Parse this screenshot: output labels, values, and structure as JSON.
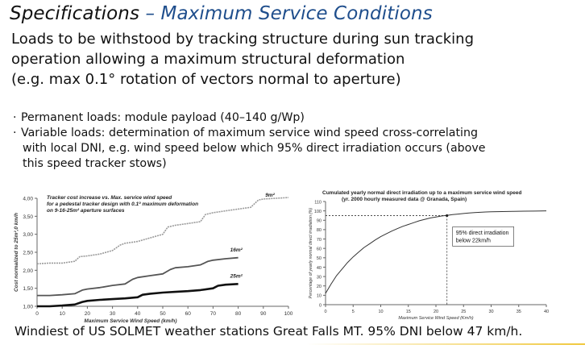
{
  "slide": {
    "title_part1": "Specifications",
    "title_sep": " – ",
    "title_part2": "Maximum Service Conditions",
    "subtitle_lines": [
      "Loads to be withstood by tracking structure during sun tracking",
      "operation allowing a maximum structural deformation",
      "(e.g. max 0.1° rotation of vectors normal to aperture)"
    ],
    "bullets": [
      {
        "text": "Permanent loads: module payload (40–140 g/Wp)"
      },
      {
        "text": "Variable loads: determination of maximum service wind speed cross-correlating",
        "cont": [
          "with local DNI, e.g. wind speed below which 95% direct irradiation occurs (above",
          "this speed tracker stows)"
        ]
      }
    ],
    "footer": "Windiest of US SOLMET weather stations Great Falls MT. 95% DNI below 47 km/h."
  },
  "chart_data": [
    {
      "type": "line",
      "title": "Tracker cost increase vs. Max. service wind speed",
      "subtitle": "for a pedestal tracker design with 0.1º maximum deformation on 9-16-25m² aperture surfaces",
      "xlabel": "Maximum Service Wind Speed (km/h)",
      "ylabel": "Cost normalized to 25m²,0 km/h",
      "xlim": [
        0,
        100
      ],
      "ylim": [
        1.0,
        4.0
      ],
      "xticks": [
        "0",
        "10",
        "20",
        "30",
        "40",
        "50",
        "60",
        "70",
        "80",
        "90",
        "100"
      ],
      "yticks": [
        "1,00",
        "1,50",
        "2,00",
        "2,50",
        "3,00",
        "3,50",
        "4,00"
      ],
      "grid": false,
      "series": [
        {
          "name": "9m²",
          "color": "#9a9a9a",
          "x": [
            0,
            5,
            10,
            15,
            17,
            20,
            25,
            30,
            33,
            35,
            40,
            45,
            50,
            52,
            55,
            60,
            65,
            67,
            70,
            75,
            80,
            85,
            88,
            90,
            95,
            100
          ],
          "y": [
            2.18,
            2.2,
            2.2,
            2.25,
            2.38,
            2.4,
            2.45,
            2.55,
            2.7,
            2.75,
            2.8,
            2.9,
            3.0,
            3.2,
            3.25,
            3.3,
            3.35,
            3.55,
            3.6,
            3.65,
            3.7,
            3.75,
            3.95,
            3.98,
            4.0,
            4.02
          ]
        },
        {
          "name": "16m²",
          "color": "#555555",
          "x": [
            0,
            5,
            10,
            15,
            18,
            20,
            25,
            30,
            35,
            38,
            40,
            45,
            50,
            53,
            55,
            60,
            65,
            68,
            70,
            75,
            80
          ],
          "y": [
            1.3,
            1.3,
            1.32,
            1.35,
            1.45,
            1.48,
            1.52,
            1.58,
            1.62,
            1.75,
            1.8,
            1.85,
            1.9,
            2.02,
            2.07,
            2.1,
            2.15,
            2.25,
            2.28,
            2.32,
            2.35
          ]
        },
        {
          "name": "25m²",
          "color": "#111111",
          "x": [
            0,
            5,
            10,
            15,
            18,
            20,
            25,
            30,
            35,
            40,
            42,
            45,
            50,
            55,
            60,
            65,
            70,
            72,
            75,
            80
          ],
          "y": [
            1.0,
            1.0,
            1.02,
            1.05,
            1.12,
            1.15,
            1.18,
            1.2,
            1.22,
            1.25,
            1.32,
            1.35,
            1.38,
            1.4,
            1.42,
            1.45,
            1.5,
            1.57,
            1.6,
            1.62
          ]
        }
      ]
    },
    {
      "type": "line",
      "title": "Cumulated yearly normal direct irradiation up to a maximum service wind speed",
      "subtitle": "(yr. 2000 hourly measured data @ Granada, Spain)",
      "xlabel": "Maximum Service Wind Speed (Km/h)",
      "ylabel": "Percentage of yearly normal direct irradiation (%)",
      "xlim": [
        0,
        40
      ],
      "ylim": [
        0,
        110
      ],
      "xticks": [
        "0",
        "5",
        "10",
        "15",
        "20",
        "25",
        "30",
        "35",
        "40"
      ],
      "yticks": [
        "0",
        "10",
        "20",
        "30",
        "40",
        "50",
        "60",
        "70",
        "80",
        "90",
        "100",
        "110"
      ],
      "grid": false,
      "annotation": {
        "text_lines": [
          "95% direct irradiation",
          "below 22km/h"
        ],
        "x": 22,
        "y": 95
      },
      "series": [
        {
          "color": "#333333",
          "x": [
            0,
            1,
            2,
            3,
            4,
            5,
            6,
            7,
            8,
            9,
            10,
            11,
            12,
            13,
            14,
            15,
            16,
            17,
            18,
            19,
            20,
            21,
            22,
            23,
            24,
            25,
            26,
            27,
            28,
            29,
            30,
            32,
            34,
            36,
            38,
            40
          ],
          "y": [
            12,
            22,
            31,
            38,
            45,
            51,
            56,
            61,
            65,
            69,
            72.5,
            75.5,
            78.5,
            81,
            83.5,
            85.5,
            87.5,
            89.5,
            91,
            92.5,
            93.5,
            94.5,
            95.2,
            96,
            96.6,
            97.2,
            97.7,
            98.1,
            98.5,
            98.8,
            99,
            99.3,
            99.5,
            99.7,
            99.8,
            100
          ]
        }
      ]
    }
  ]
}
